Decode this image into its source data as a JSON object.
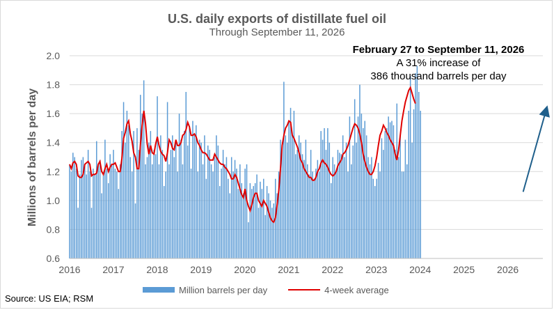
{
  "title": "U.S. daily exports of distillate fuel oil",
  "subtitle": "Through September 11, 2026",
  "annotation": {
    "heading": "February 27 to September 11, 2026",
    "line1": "A 31% increase of",
    "line2": "386 thousand barrels per day"
  },
  "source": "Source: US EIA; RSM",
  "legend": {
    "bars": "Million barrels per day",
    "line": "4-week average"
  },
  "colors": {
    "bars": "#5b9bd5",
    "line": "#e00000",
    "arrow": "#1f5f8b"
  },
  "chart_data": {
    "type": "bar",
    "title": "U.S. daily exports of distillate fuel oil",
    "subtitle": "Through September 11, 2026",
    "ylabel": "Millions of barrels per day",
    "xlabel": "",
    "ylim": [
      0.6,
      2.0
    ],
    "yticks": [
      "0.6",
      "0.8",
      "1.0",
      "1.2",
      "1.4",
      "1.6",
      "1.8",
      "2.0"
    ],
    "xticks": [
      "2016",
      "2017",
      "2018",
      "2019",
      "2020",
      "2021",
      "2022",
      "2023",
      "2024",
      "2025",
      "2026"
    ],
    "grid": true,
    "legend_position": "bottom",
    "series": [
      {
        "name": "Million barrels per day",
        "type": "bar",
        "x_start": 2016.0,
        "x_step": 0.0385,
        "values": [
          1.25,
          1.2,
          1.33,
          1.3,
          1.22,
          0.95,
          1.18,
          1.28,
          1.3,
          1.25,
          1.18,
          1.35,
          1.2,
          0.95,
          1.22,
          1.18,
          1.41,
          1.25,
          1.28,
          1.05,
          1.18,
          1.42,
          1.22,
          1.12,
          1.32,
          1.25,
          1.35,
          1.22,
          1.2,
          1.08,
          1.25,
          1.48,
          1.68,
          1.4,
          1.62,
          1.52,
          1.3,
          1.2,
          1.48,
          0.98,
          1.5,
          1.35,
          1.73,
          1.6,
          1.83,
          1.25,
          1.3,
          1.4,
          1.48,
          1.25,
          1.35,
          1.32,
          1.72,
          1.25,
          1.45,
          1.35,
          1.1,
          1.2,
          1.68,
          1.25,
          1.35,
          1.45,
          1.3,
          1.4,
          1.2,
          1.6,
          1.42,
          1.25,
          1.48,
          1.75,
          1.38,
          1.5,
          1.22,
          1.55,
          1.45,
          1.52,
          1.2,
          1.42,
          1.4,
          1.25,
          1.45,
          1.15,
          1.38,
          1.35,
          1.25,
          1.2,
          1.3,
          1.45,
          1.38,
          1.1,
          1.22,
          1.35,
          1.25,
          1.3,
          1.15,
          1.05,
          1.3,
          1.2,
          1.28,
          1.22,
          1.08,
          1.25,
          1.12,
          1.05,
          1.22,
          1.25,
          0.85,
          1.12,
          1.08,
          1.1,
          1.12,
          1.18,
          0.95,
          1.13,
          1.08,
          1.15,
          0.9,
          1.1,
          1.05,
          1.0,
          0.95,
          0.98,
          1.15,
          1.05,
          1.2,
          1.42,
          1.38,
          1.82,
          1.45,
          1.4,
          1.55,
          1.64,
          1.45,
          1.62,
          1.32,
          1.35,
          1.45,
          1.4,
          1.32,
          1.28,
          1.42,
          1.25,
          1.18,
          1.35,
          1.2,
          1.15,
          1.22,
          1.28,
          1.2,
          1.48,
          1.42,
          1.5,
          1.35,
          1.5,
          1.4,
          1.12,
          1.3,
          1.25,
          1.2,
          1.35,
          1.33,
          1.32,
          1.45,
          1.3,
          1.4,
          1.2,
          1.58,
          1.25,
          1.38,
          1.7,
          1.4,
          1.58,
          1.8,
          1.6,
          1.5,
          1.55,
          1.45,
          1.3,
          1.25,
          1.3,
          1.15,
          1.1,
          1.15,
          1.26,
          1.2,
          1.43,
          1.35,
          1.48,
          1.5,
          1.58,
          1.54,
          1.55,
          1.52,
          1.35,
          1.67,
          1.3,
          1.45,
          1.2,
          1.2,
          1.42,
          1.25,
          1.62,
          1.86,
          1.4,
          1.63,
          1.88,
          1.93,
          1.75,
          1.62
        ]
      },
      {
        "name": "4-week average",
        "type": "line",
        "x_start": 2016.0,
        "x_step": 0.0385,
        "values": [
          1.25,
          1.22,
          1.26,
          1.27,
          1.25,
          1.17,
          1.16,
          1.16,
          1.18,
          1.25,
          1.26,
          1.27,
          1.25,
          1.17,
          1.18,
          1.18,
          1.19,
          1.25,
          1.27,
          1.2,
          1.18,
          1.22,
          1.25,
          1.2,
          1.23,
          1.25,
          1.25,
          1.26,
          1.23,
          1.2,
          1.2,
          1.29,
          1.43,
          1.47,
          1.53,
          1.55,
          1.46,
          1.41,
          1.33,
          1.3,
          1.22,
          1.22,
          1.39,
          1.52,
          1.62,
          1.53,
          1.39,
          1.32,
          1.38,
          1.33,
          1.32,
          1.39,
          1.44,
          1.38,
          1.34,
          1.32,
          1.31,
          1.27,
          1.33,
          1.42,
          1.4,
          1.36,
          1.35,
          1.42,
          1.38,
          1.38,
          1.4,
          1.45,
          1.46,
          1.49,
          1.54,
          1.51,
          1.45,
          1.45,
          1.46,
          1.44,
          1.4,
          1.38,
          1.35,
          1.33,
          1.33,
          1.32,
          1.3,
          1.28,
          1.28,
          1.28,
          1.32,
          1.3,
          1.28,
          1.26,
          1.25,
          1.25,
          1.23,
          1.22,
          1.2,
          1.18,
          1.15,
          1.15,
          1.18,
          1.16,
          1.12,
          1.08,
          1.04,
          1.02,
          1.08,
          1.0,
          0.96,
          0.93,
          0.97,
          1.02,
          1.05,
          1.05,
          1.0,
          0.98,
          0.96,
          1.0,
          0.98,
          0.96,
          0.92,
          0.88,
          0.86,
          0.85,
          0.88,
          0.97,
          1.07,
          1.22,
          1.38,
          1.45,
          1.5,
          1.52,
          1.55,
          1.54,
          1.45,
          1.43,
          1.4,
          1.37,
          1.33,
          1.28,
          1.26,
          1.22,
          1.2,
          1.18,
          1.16,
          1.16,
          1.14,
          1.14,
          1.16,
          1.2,
          1.22,
          1.26,
          1.28,
          1.26,
          1.25,
          1.23,
          1.2,
          1.18,
          1.17,
          1.18,
          1.2,
          1.24,
          1.26,
          1.28,
          1.32,
          1.33,
          1.35,
          1.38,
          1.42,
          1.46,
          1.5,
          1.53,
          1.52,
          1.5,
          1.46,
          1.4,
          1.32,
          1.27,
          1.23,
          1.2,
          1.18,
          1.18,
          1.2,
          1.24,
          1.3,
          1.38,
          1.45,
          1.48,
          1.52,
          1.5,
          1.47,
          1.45,
          1.42,
          1.4,
          1.38,
          1.32,
          1.28,
          1.35,
          1.45,
          1.55,
          1.62,
          1.68,
          1.72,
          1.76,
          1.78,
          1.74,
          1.7,
          1.67
        ]
      }
    ],
    "trend_arrow": {
      "from": [
        2026.35,
        1.06
      ],
      "to": [
        2026.87,
        1.62
      ]
    }
  }
}
